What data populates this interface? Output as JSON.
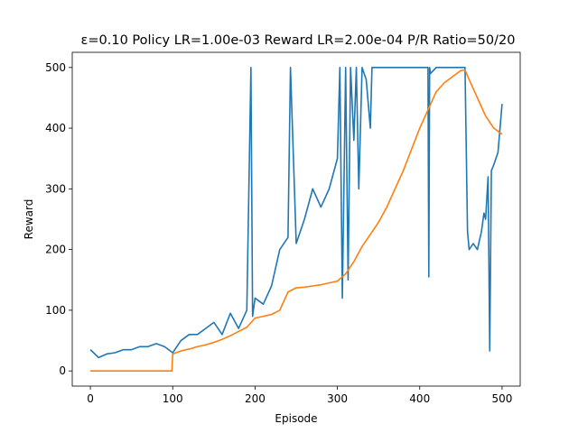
{
  "chart_data": {
    "type": "line",
    "title": "ε=0.10  Policy LR=1.00e-03  Reward LR=2.00e-04  P/R Ratio=50/20",
    "xlabel": "Episode",
    "ylabel": "Reward",
    "xlim": [
      -22,
      522
    ],
    "ylim": [
      -25,
      525
    ],
    "xticks": [
      0,
      100,
      200,
      300,
      400,
      500
    ],
    "yticks": [
      0,
      100,
      200,
      300,
      400,
      500
    ],
    "grid": false,
    "series": [
      {
        "color": "#1f77b4",
        "x": [
          0,
          10,
          20,
          30,
          40,
          50,
          60,
          70,
          80,
          90,
          100,
          110,
          120,
          130,
          140,
          150,
          160,
          170,
          180,
          190,
          195,
          197,
          200,
          210,
          220,
          230,
          240,
          243,
          250,
          260,
          270,
          280,
          290,
          300,
          303,
          306,
          310,
          313,
          316,
          320,
          323,
          326,
          330,
          335,
          340,
          342,
          345,
          350,
          360,
          370,
          380,
          390,
          400,
          410,
          411,
          412,
          413,
          420,
          430,
          440,
          450,
          455,
          458,
          460,
          465,
          470,
          475,
          478,
          480,
          483,
          485,
          487,
          490,
          495,
          500
        ],
        "y": [
          35,
          22,
          28,
          30,
          35,
          35,
          40,
          40,
          45,
          40,
          30,
          50,
          60,
          60,
          70,
          80,
          60,
          95,
          70,
          100,
          500,
          90,
          120,
          110,
          140,
          200,
          220,
          500,
          210,
          250,
          300,
          270,
          300,
          350,
          500,
          120,
          500,
          150,
          500,
          380,
          500,
          300,
          500,
          480,
          400,
          500,
          500,
          500,
          500,
          500,
          500,
          500,
          500,
          500,
          155,
          500,
          490,
          500,
          500,
          500,
          500,
          500,
          230,
          200,
          210,
          200,
          230,
          260,
          250,
          320,
          33,
          330,
          340,
          360,
          440
        ]
      },
      {
        "color": "#ff7f0e",
        "x": [
          0,
          99,
          100,
          110,
          120,
          130,
          140,
          150,
          160,
          170,
          180,
          190,
          200,
          210,
          220,
          230,
          240,
          250,
          260,
          270,
          280,
          290,
          300,
          310,
          320,
          330,
          340,
          350,
          360,
          370,
          380,
          390,
          400,
          410,
          420,
          430,
          440,
          450,
          455,
          460,
          470,
          480,
          490,
          500
        ],
        "y": [
          0,
          0,
          28,
          33,
          36,
          40,
          43,
          47,
          52,
          58,
          65,
          72,
          87,
          90,
          93,
          100,
          130,
          137,
          138,
          140,
          142,
          145,
          148,
          160,
          180,
          205,
          225,
          245,
          270,
          300,
          330,
          365,
          400,
          430,
          460,
          475,
          485,
          495,
          496,
          480,
          450,
          420,
          400,
          390
        ]
      }
    ]
  }
}
